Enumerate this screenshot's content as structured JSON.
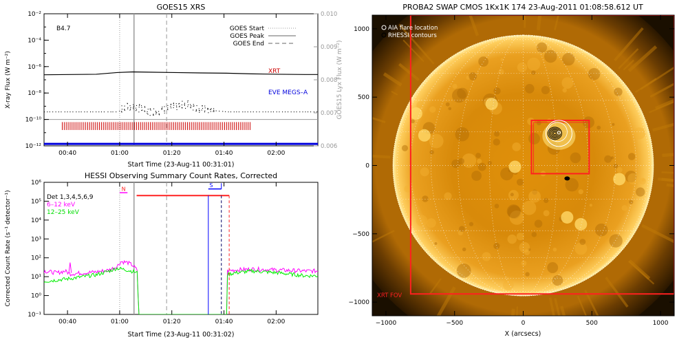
{
  "colors": {
    "xrt": "#cc0000",
    "eve": "#0000dd",
    "red": "#ff2020",
    "magenta": "#ff00ff",
    "green": "#00ee00",
    "blue": "#0000ff",
    "gray": "#999999",
    "black": "#000000"
  },
  "chart_data": [
    {
      "type": "line",
      "id": "goes",
      "title": "GOES15 XRS",
      "xlabel": "Start Time (23-Aug-11 00:31:01)",
      "ylabel": "X-ray Flux (W m⁻²)",
      "ylabel_right": "GOES15 Lyx Flux (W m⁻²)",
      "time_range_min": [
        0,
        105
      ],
      "x_ticks": [
        {
          "t": 9,
          "label": "00:40"
        },
        {
          "t": 29,
          "label": "01:00"
        },
        {
          "t": 49,
          "label": "01:20"
        },
        {
          "t": 69,
          "label": "01:40"
        },
        {
          "t": 89,
          "label": "02:00"
        }
      ],
      "ylim_log": [
        -12,
        -2
      ],
      "y_ticks": [
        {
          "exp": -2,
          "label": "10⁻²"
        },
        {
          "exp": -4,
          "label": "10⁻⁴"
        },
        {
          "exp": -6,
          "label": "10⁻⁶"
        },
        {
          "exp": -8,
          "label": "10⁻⁸"
        },
        {
          "exp": -10,
          "label": "10⁻¹⁰"
        },
        {
          "exp": -12,
          "label": "10⁻¹²"
        }
      ],
      "ylim_right": [
        0.006,
        0.01
      ],
      "y_ticks_right": [
        "0.006",
        "0.007",
        "0.008",
        "0.009",
        "0.010"
      ],
      "class_label": "B4.7",
      "legend": [
        "GOES Start",
        "GOES Peak",
        "GOES End"
      ],
      "markers_min": {
        "start": 29,
        "peak": 34.5,
        "end": 47
      },
      "annotations": [
        "XRT",
        "EVE MEGS–A"
      ],
      "series": [
        {
          "name": "GOES long",
          "x": [
            0,
            10,
            20,
            28,
            34,
            40,
            50,
            60,
            70,
            80,
            90,
            100,
            105
          ],
          "y": [
            -6.62,
            -6.6,
            -6.58,
            -6.45,
            -6.4,
            -6.42,
            -6.45,
            -6.48,
            -6.5,
            -6.55,
            -6.58,
            -6.6,
            -6.6
          ]
        },
        {
          "name": "GOES short",
          "x": [
            0,
            10,
            20,
            25,
            28,
            32,
            36,
            40,
            45,
            50,
            55,
            60,
            70,
            80,
            90,
            100,
            105
          ],
          "y": [
            -9.4,
            -9.4,
            -9.4,
            -9.4,
            -9.4,
            -9.0,
            -9.1,
            -9.4,
            -9.3,
            -9.0,
            -8.8,
            -9.2,
            -9.4,
            -9.4,
            -9.4,
            -9.4,
            -9.4
          ]
        },
        {
          "name": "Lyman-alpha",
          "x": [
            0,
            105
          ],
          "y": [
            -10.0,
            -10.0
          ]
        },
        {
          "name": "EVE MEGS-A",
          "x": [
            0,
            105
          ],
          "y": [
            -11.85,
            -11.85
          ]
        }
      ],
      "xrt_ticks_range_min": [
        7,
        79
      ]
    },
    {
      "type": "line",
      "id": "hessi",
      "title": "HESSI Observing Summary Count Rates, Corrected",
      "xlabel": "Start Time (23-Aug-11 00:31:02)",
      "ylabel": "Corrected Count Rate (s⁻¹ detector⁻¹)",
      "time_range_min": [
        0,
        105
      ],
      "x_ticks": [
        {
          "t": 9,
          "label": "00:40"
        },
        {
          "t": 29,
          "label": "01:00"
        },
        {
          "t": 49,
          "label": "01:20"
        },
        {
          "t": 69,
          "label": "01:40"
        },
        {
          "t": 89,
          "label": "02:00"
        }
      ],
      "ylim_log": [
        -1,
        6
      ],
      "y_ticks": [
        {
          "exp": 6,
          "label": "10⁶"
        },
        {
          "exp": 5,
          "label": "10⁵"
        },
        {
          "exp": 4,
          "label": "10⁴"
        },
        {
          "exp": 3,
          "label": "10³"
        },
        {
          "exp": 2,
          "label": "10²"
        },
        {
          "exp": 1,
          "label": "10¹"
        },
        {
          "exp": 0,
          "label": "10⁰"
        },
        {
          "exp": -1,
          "label": "10⁻¹"
        }
      ],
      "legend": [
        "Det 1,3,4,5,6,9",
        "6–12 keV",
        "12–25 keV"
      ],
      "flags": {
        "N": "N",
        "S": "S"
      },
      "series": [
        {
          "name": "6-12 keV",
          "x": [
            0,
            5,
            8,
            10,
            15,
            20,
            25,
            28,
            29.5,
            32,
            34,
            36,
            36.1,
            70,
            70.1,
            73,
            80,
            90,
            100,
            105
          ],
          "y": [
            1.3,
            1.2,
            1.3,
            1.15,
            1.2,
            1.25,
            1.35,
            1.55,
            1.8,
            1.75,
            1.6,
            1.3,
            -1,
            -1,
            1.3,
            1.35,
            1.4,
            1.35,
            1.3,
            1.3
          ]
        },
        {
          "name": "12-25 keV",
          "x": [
            0,
            10,
            20,
            25,
            28,
            32,
            36,
            36.1,
            70,
            70.1,
            73,
            80,
            90,
            100,
            105
          ],
          "y": [
            0.75,
            0.9,
            1.1,
            1.3,
            1.45,
            1.35,
            1.2,
            -1,
            -1,
            1.1,
            1.2,
            1.3,
            1.2,
            1.05,
            1.05
          ]
        }
      ],
      "spike_min": 10,
      "night_min": [
        32,
        35
      ],
      "attenuator_min": [
        36,
        71
      ],
      "saa_min": [
        63,
        68
      ]
    },
    {
      "type": "heatmap",
      "id": "swap",
      "title": "PROBA2 SWAP CMOS 1Kx1K 174 23-Aug-2011 01:08:58.612 UT",
      "xlabel": "X (arcsecs)",
      "xlim": [
        -1100,
        1100
      ],
      "ylim": [
        -1100,
        1100
      ],
      "x_ticks": [
        {
          "v": -1000,
          "label": "−1000"
        },
        {
          "v": -500,
          "label": "−500"
        },
        {
          "v": 0,
          "label": "0"
        },
        {
          "v": 500,
          "label": "500"
        },
        {
          "v": 1000,
          "label": "1000"
        }
      ],
      "y_ticks": [
        {
          "v": 1000,
          "label": "1000"
        },
        {
          "v": 500,
          "label": "500"
        },
        {
          "v": 0,
          "label": "0"
        },
        {
          "v": -500,
          "label": "−500"
        },
        {
          "v": -1000,
          "label": "−1000"
        }
      ],
      "legend": [
        "AIA flare location",
        "RHESSI contours"
      ],
      "xrt_fov_label": "XRT FOV",
      "solar_radius_arcsec": 950,
      "xrt_fov": {
        "x0": -820,
        "x1": 1100,
        "y0": -940,
        "y1": 1100
      },
      "flare_box": {
        "x0": 60,
        "x1": 480,
        "y0": -60,
        "y1": 330
      },
      "aia_flare": {
        "x": 260,
        "y": 240
      },
      "rhessi_contour_center": {
        "x": 230,
        "y": 235
      },
      "small_feature": {
        "x": 320,
        "y": -95
      }
    }
  ]
}
